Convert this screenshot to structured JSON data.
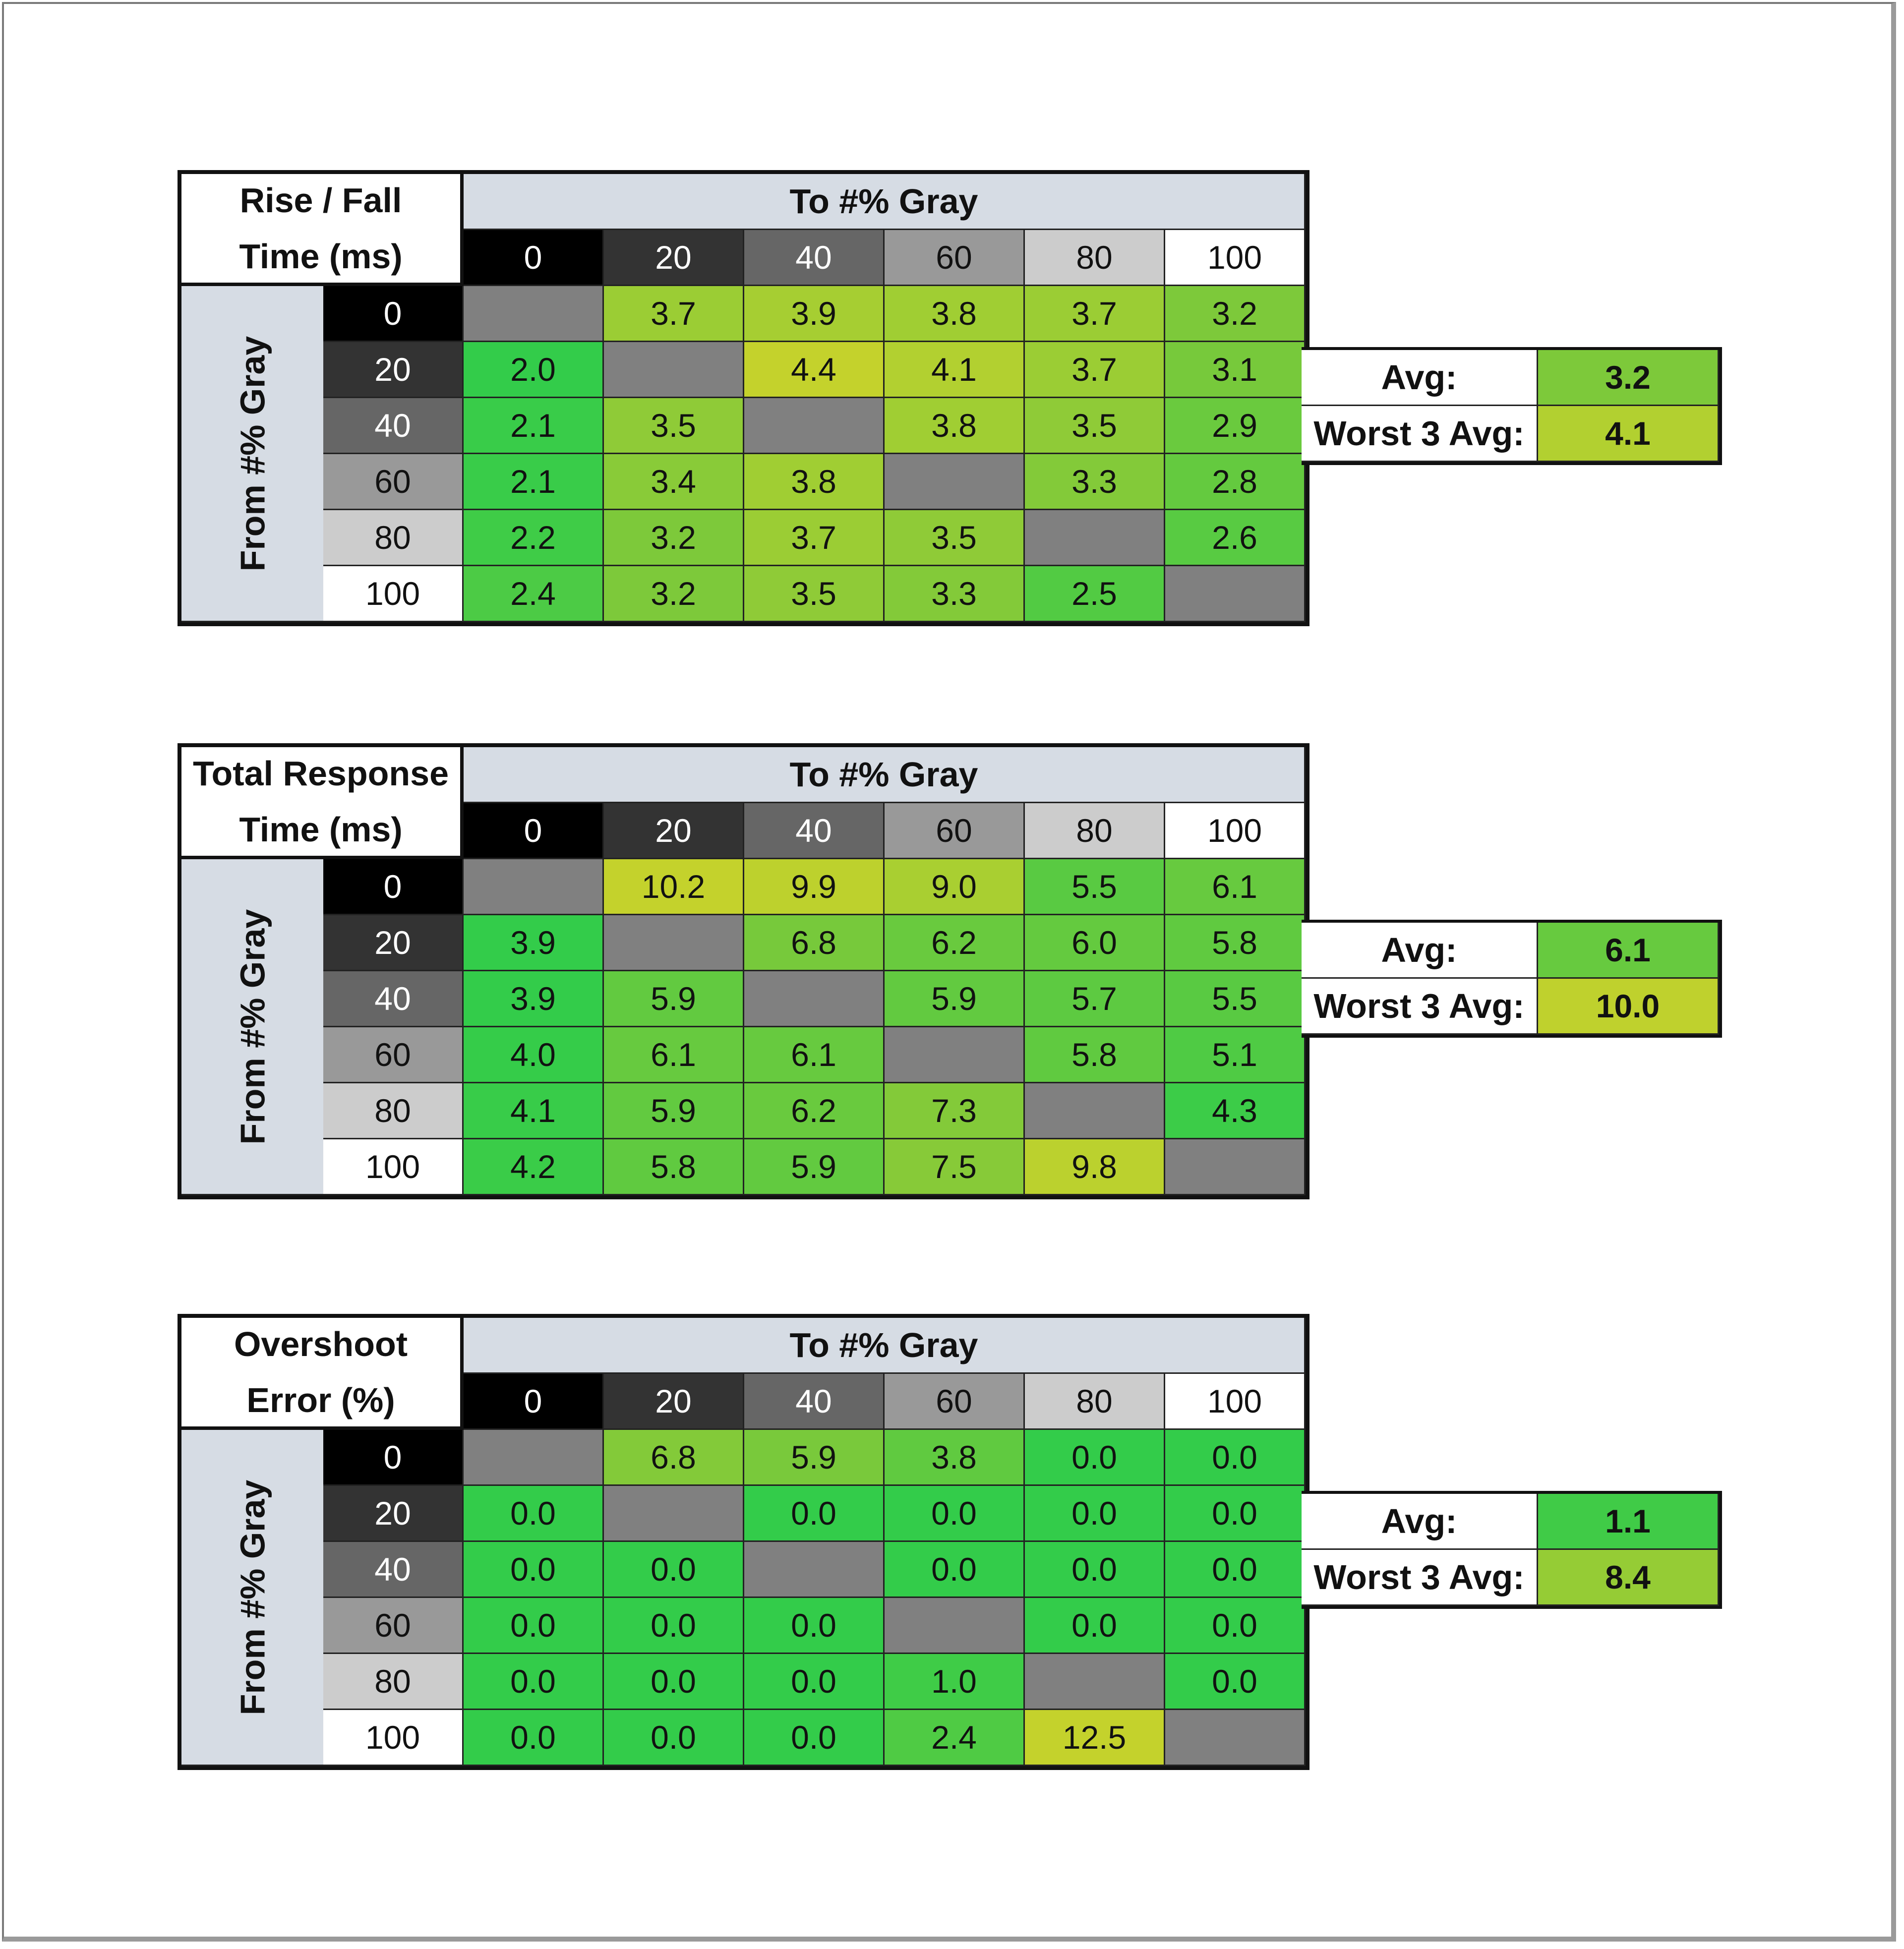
{
  "col_headers": [
    "0",
    "20",
    "40",
    "60",
    "80",
    "100"
  ],
  "row_headers": [
    "0",
    "20",
    "40",
    "60",
    "80",
    "100"
  ],
  "header_colors": [
    "#000000",
    "#333333",
    "#666666",
    "#999999",
    "#cccccc",
    "#ffffff"
  ],
  "header_text_colors": [
    "#ffffff",
    "#ffffff",
    "#ffffff",
    "#111111",
    "#111111",
    "#111111"
  ],
  "to_label": "To #% Gray",
  "from_label": "From #% Gray",
  "avg_label": "Avg:",
  "worst_label": "Worst 3 Avg:",
  "diagonal_color": "#808080",
  "scale_colors": {
    "low": "#33cc4a",
    "mid": "#7dc93a",
    "high": "#c4d22c"
  },
  "chart_data": [
    {
      "type": "heatmap",
      "title_line1": "Rise / Fall",
      "title_line2": "Time (ms)",
      "xlabel": "To #% Gray",
      "ylabel": "From #% Gray",
      "values": [
        [
          null,
          "3.7",
          "3.9",
          "3.8",
          "3.7",
          "3.2"
        ],
        [
          "2.0",
          null,
          "4.4",
          "4.1",
          "3.7",
          "3.1"
        ],
        [
          "2.1",
          "3.5",
          null,
          "3.8",
          "3.5",
          "2.9"
        ],
        [
          "2.1",
          "3.4",
          "3.8",
          null,
          "3.3",
          "2.8"
        ],
        [
          "2.2",
          "3.2",
          "3.7",
          "3.5",
          null,
          "2.6"
        ],
        [
          "2.4",
          "3.2",
          "3.5",
          "3.3",
          "2.5",
          null
        ]
      ],
      "avg": "3.2",
      "worst3_avg": "4.1"
    },
    {
      "type": "heatmap",
      "title_line1": "Total Response",
      "title_line2": "Time (ms)",
      "xlabel": "To #% Gray",
      "ylabel": "From #% Gray",
      "values": [
        [
          null,
          "10.2",
          "9.9",
          "9.0",
          "5.5",
          "6.1"
        ],
        [
          "3.9",
          null,
          "6.8",
          "6.2",
          "6.0",
          "5.8"
        ],
        [
          "3.9",
          "5.9",
          null,
          "5.9",
          "5.7",
          "5.5"
        ],
        [
          "4.0",
          "6.1",
          "6.1",
          null,
          "5.8",
          "5.1"
        ],
        [
          "4.1",
          "5.9",
          "6.2",
          "7.3",
          null,
          "4.3"
        ],
        [
          "4.2",
          "5.8",
          "5.9",
          "7.5",
          "9.8",
          null
        ]
      ],
      "avg": "6.1",
      "worst3_avg": "10.0"
    },
    {
      "type": "heatmap",
      "title_line1": "Overshoot",
      "title_line2": "Error (%)",
      "xlabel": "To #% Gray",
      "ylabel": "From #% Gray",
      "values": [
        [
          null,
          "6.8",
          "5.9",
          "3.8",
          "0.0",
          "0.0"
        ],
        [
          "0.0",
          null,
          "0.0",
          "0.0",
          "0.0",
          "0.0"
        ],
        [
          "0.0",
          "0.0",
          null,
          "0.0",
          "0.0",
          "0.0"
        ],
        [
          "0.0",
          "0.0",
          "0.0",
          null,
          "0.0",
          "0.0"
        ],
        [
          "0.0",
          "0.0",
          "0.0",
          "1.0",
          null,
          "0.0"
        ],
        [
          "0.0",
          "0.0",
          "0.0",
          "2.4",
          "12.5",
          null
        ]
      ],
      "avg": "1.1",
      "worst3_avg": "8.4"
    }
  ]
}
